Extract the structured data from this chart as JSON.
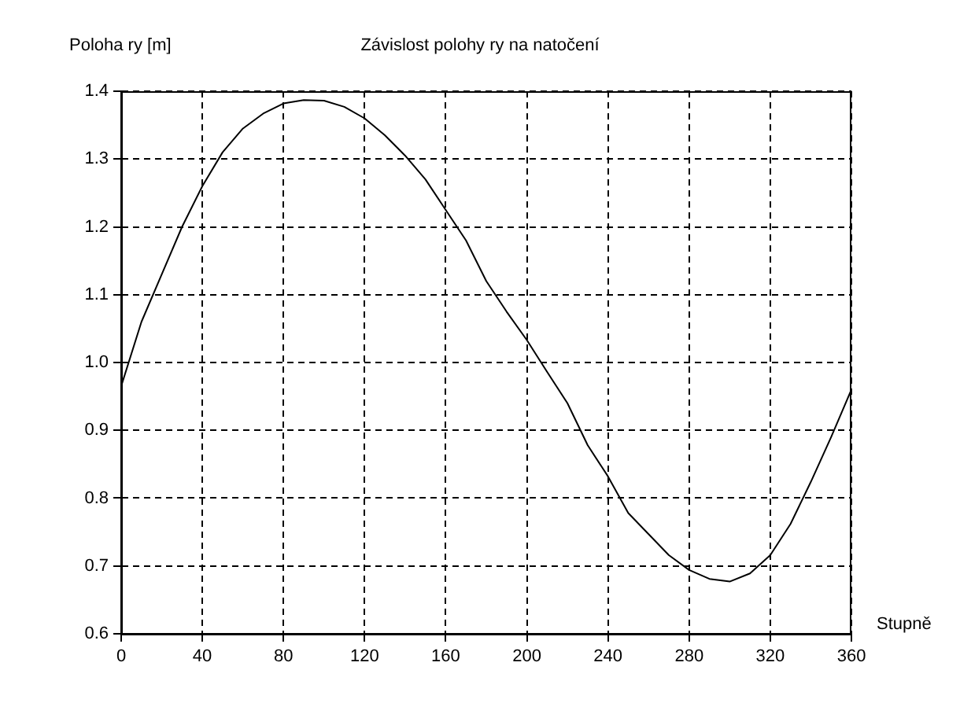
{
  "chart_data": {
    "type": "line",
    "title": "Závislost polohy ry na natočení",
    "xlabel": "Stupně",
    "ylabel": "Poloha ry [m]",
    "x": [
      0,
      10,
      20,
      30,
      40,
      50,
      60,
      70,
      80,
      90,
      100,
      110,
      120,
      130,
      140,
      150,
      160,
      170,
      180,
      190,
      200,
      210,
      220,
      230,
      240,
      250,
      260,
      270,
      280,
      290,
      300,
      310,
      320,
      330,
      340,
      350,
      360
    ],
    "series": [
      {
        "color": "#000000",
        "values": [
          0.965,
          1.06,
          1.13,
          1.2,
          1.26,
          1.31,
          1.345,
          1.367,
          1.382,
          1.387,
          1.386,
          1.377,
          1.36,
          1.335,
          1.305,
          1.27,
          1.225,
          1.18,
          1.12,
          1.075,
          1.033,
          0.986,
          0.94,
          0.878,
          0.832,
          0.778,
          0.747,
          0.716,
          0.694,
          0.681,
          0.677,
          0.689,
          0.716,
          0.762,
          0.824,
          0.89,
          0.96
        ]
      }
    ],
    "xlim": [
      0,
      360
    ],
    "xticks": [
      0,
      40,
      80,
      120,
      160,
      200,
      240,
      280,
      320,
      360
    ],
    "ylim": [
      0.6,
      1.4
    ],
    "yticks": [
      0.6,
      0.7,
      0.8,
      0.9,
      {
        "value": 1,
        "label": "1.0"
      },
      1.1,
      1.2,
      1.3,
      1.4
    ],
    "grid": true,
    "legend": false,
    "marker": "none",
    "line_style": "solid"
  }
}
